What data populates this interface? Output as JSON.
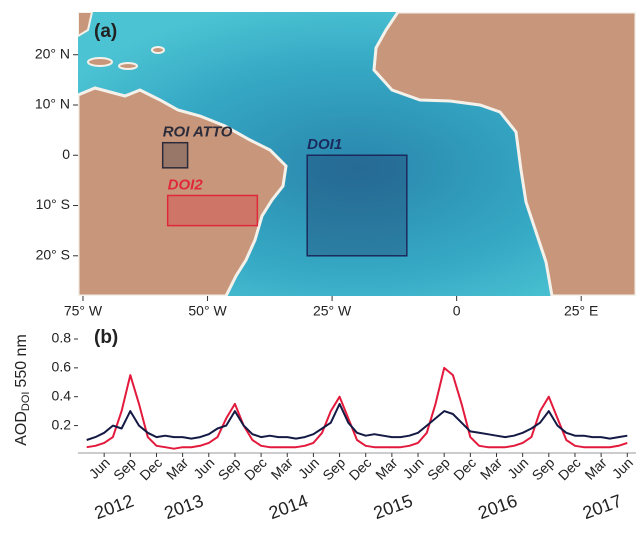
{
  "chart_data": [
    {
      "type": "map",
      "panel_label": "(a)",
      "xlim": [
        -76,
        36
      ],
      "ylim": [
        -28,
        28.5
      ],
      "xticks": [
        {
          "value": -75,
          "label": "75° W"
        },
        {
          "value": -50,
          "label": "50° W"
        },
        {
          "value": -25,
          "label": "25° W"
        },
        0,
        {
          "value": 25,
          "label": "25° E"
        }
      ],
      "yticks": [
        {
          "value": 20,
          "label": "20° N"
        },
        {
          "value": 10,
          "label": "10° N"
        },
        0,
        {
          "value": -10,
          "label": "10° S"
        },
        {
          "value": -20,
          "label": "20° S"
        }
      ],
      "regions": [
        {
          "name": "ROI ATTO",
          "color": "#2b2b3a",
          "lon": [
            -59,
            -54
          ],
          "lat": [
            -2.5,
            2.5
          ]
        },
        {
          "name": "DOI1",
          "color": "#1b2a5c",
          "lon": [
            -30,
            -10
          ],
          "lat": [
            -20,
            0
          ]
        },
        {
          "name": "DOI2",
          "color": "#e0283c",
          "lon": [
            -58,
            -40
          ],
          "lat": [
            -14,
            -8
          ]
        }
      ]
    },
    {
      "type": "line",
      "panel_label": "(b)",
      "ylabel": {
        "main": "AOD",
        "sub": "DOI",
        "unit": "550 nm"
      },
      "xlim": [
        "2012-03",
        "2017-07"
      ],
      "x": [
        "2012-04",
        "2012-05",
        "2012-06",
        "2012-07",
        "2012-08",
        "2012-09",
        "2012-10",
        "2012-11",
        "2012-12",
        "2013-01",
        "2013-02",
        "2013-03",
        "2013-04",
        "2013-05",
        "2013-06",
        "2013-07",
        "2013-08",
        "2013-09",
        "2013-10",
        "2013-11",
        "2013-12",
        "2014-01",
        "2014-02",
        "2014-03",
        "2014-04",
        "2014-05",
        "2014-06",
        "2014-07",
        "2014-08",
        "2014-09",
        "2014-10",
        "2014-11",
        "2014-12",
        "2015-01",
        "2015-02",
        "2015-03",
        "2015-04",
        "2015-05",
        "2015-06",
        "2015-07",
        "2015-08",
        "2015-09",
        "2015-10",
        "2015-11",
        "2015-12",
        "2016-01",
        "2016-02",
        "2016-03",
        "2016-04",
        "2016-05",
        "2016-06",
        "2016-07",
        "2016-08",
        "2016-09",
        "2016-10",
        "2016-11",
        "2016-12",
        "2017-01",
        "2017-02",
        "2017-03",
        "2017-04",
        "2017-05",
        "2017-06"
      ],
      "xticks": [
        {
          "value": "2012-06",
          "label": "Jun"
        },
        {
          "value": "2012-09",
          "label": "Sep"
        },
        {
          "value": "2012-12",
          "label": "Dec"
        },
        {
          "value": "2013-03",
          "label": "Mar"
        },
        {
          "value": "2013-06",
          "label": "Jun"
        },
        {
          "value": "2013-09",
          "label": "Sep"
        },
        {
          "value": "2013-12",
          "label": "Dec"
        },
        {
          "value": "2014-03",
          "label": "Mar"
        },
        {
          "value": "2014-06",
          "label": "Jun"
        },
        {
          "value": "2014-09",
          "label": "Sep"
        },
        {
          "value": "2014-12",
          "label": "Dec"
        },
        {
          "value": "2015-03",
          "label": "Mar"
        },
        {
          "value": "2015-06",
          "label": "Jun"
        },
        {
          "value": "2015-09",
          "label": "Sep"
        },
        {
          "value": "2015-12",
          "label": "Dec"
        },
        {
          "value": "2016-03",
          "label": "Mar"
        },
        {
          "value": "2016-06",
          "label": "Jun"
        },
        {
          "value": "2016-09",
          "label": "Sep"
        },
        {
          "value": "2016-12",
          "label": "Dec"
        },
        {
          "value": "2017-03",
          "label": "Mar"
        },
        {
          "value": "2017-06",
          "label": "Jun"
        }
      ],
      "year_labels": [
        {
          "value": "2012-05",
          "label": "2012"
        },
        {
          "value": "2013-01",
          "label": "2013"
        },
        {
          "value": "2014-01",
          "label": "2014"
        },
        {
          "value": "2015-01",
          "label": "2015"
        },
        {
          "value": "2016-01",
          "label": "2016"
        },
        {
          "value": "2017-01",
          "label": "2017"
        }
      ],
      "ylim": [
        0.01,
        0.89
      ],
      "yticks": [
        0.2,
        0.4,
        0.6,
        0.8
      ],
      "series": [
        {
          "color": "#e31a3c",
          "values": [
            0.05,
            0.06,
            0.08,
            0.12,
            0.3,
            0.55,
            0.35,
            0.12,
            0.06,
            0.05,
            0.04,
            0.05,
            0.05,
            0.06,
            0.08,
            0.12,
            0.25,
            0.35,
            0.2,
            0.1,
            0.06,
            0.05,
            0.05,
            0.05,
            0.05,
            0.06,
            0.08,
            0.15,
            0.3,
            0.4,
            0.25,
            0.1,
            0.06,
            0.05,
            0.05,
            0.05,
            0.05,
            0.06,
            0.08,
            0.15,
            0.35,
            0.6,
            0.55,
            0.35,
            0.12,
            0.06,
            0.05,
            0.05,
            0.05,
            0.06,
            0.08,
            0.12,
            0.3,
            0.4,
            0.25,
            0.1,
            0.06,
            0.05,
            0.05,
            0.05,
            0.05,
            0.06,
            0.08
          ]
        },
        {
          "color": "#141a44",
          "values": [
            0.1,
            0.12,
            0.15,
            0.2,
            0.18,
            0.3,
            0.2,
            0.15,
            0.12,
            0.13,
            0.12,
            0.12,
            0.11,
            0.12,
            0.14,
            0.18,
            0.2,
            0.3,
            0.2,
            0.14,
            0.12,
            0.13,
            0.12,
            0.12,
            0.11,
            0.12,
            0.14,
            0.18,
            0.22,
            0.35,
            0.22,
            0.15,
            0.13,
            0.14,
            0.13,
            0.12,
            0.12,
            0.13,
            0.15,
            0.2,
            0.25,
            0.3,
            0.28,
            0.22,
            0.16,
            0.15,
            0.14,
            0.13,
            0.12,
            0.13,
            0.15,
            0.18,
            0.22,
            0.3,
            0.2,
            0.15,
            0.13,
            0.13,
            0.12,
            0.12,
            0.11,
            0.12,
            0.13
          ]
        }
      ]
    }
  ]
}
